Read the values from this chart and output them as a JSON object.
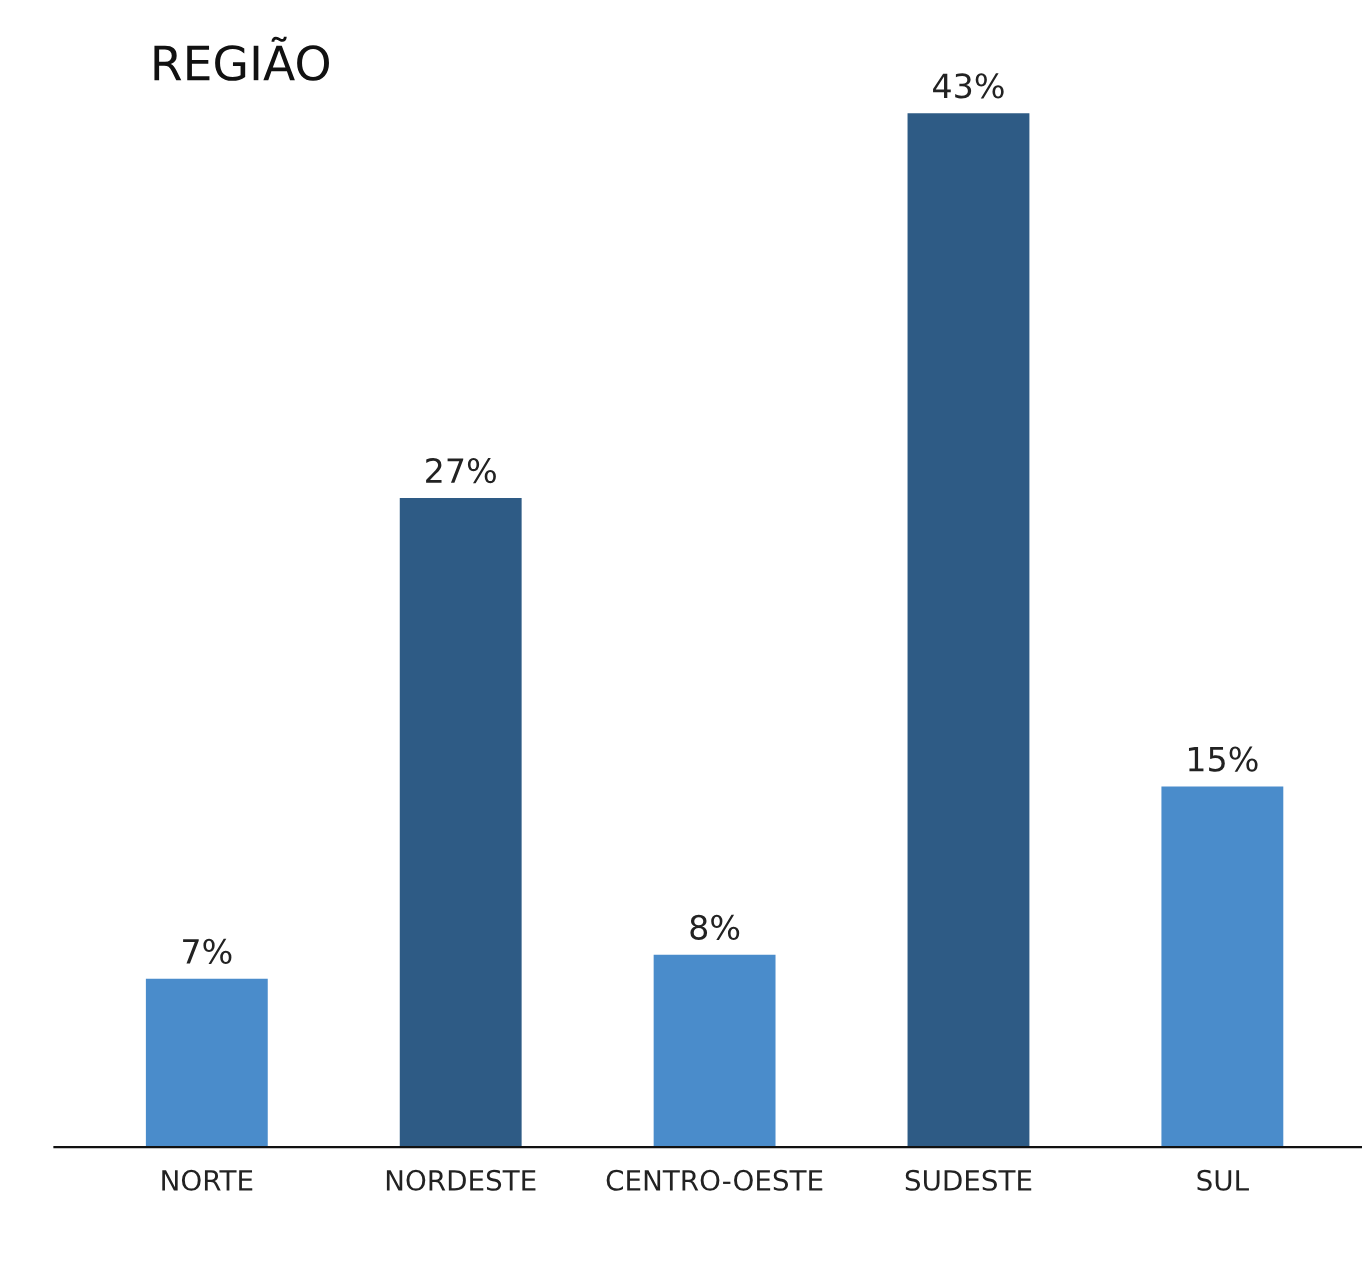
{
  "chart_data": {
    "type": "bar",
    "title": "REGIÃO",
    "categories": [
      "NORTE",
      "NORDESTE",
      "CENTRO-OESTE",
      "SUDESTE",
      "SUL"
    ],
    "values": [
      7,
      27,
      8,
      43,
      15
    ],
    "colors": [
      "#4a8ccb",
      "#2e5b85",
      "#4a8ccb",
      "#2e5b85",
      "#4a8ccb"
    ],
    "value_labels": [
      "7%",
      "27%",
      "8%",
      "43%",
      "15%"
    ],
    "grid": false,
    "legend": false
  }
}
